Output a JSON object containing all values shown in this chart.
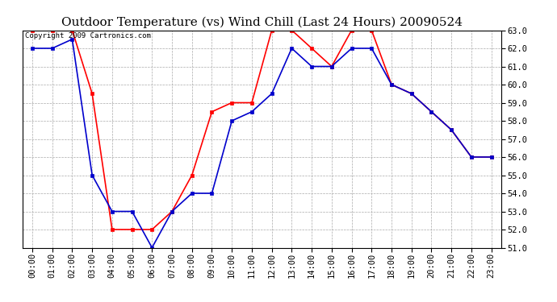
{
  "title": "Outdoor Temperature (vs) Wind Chill (Last 24 Hours) 20090524",
  "copyright_text": "Copyright 2009 Cartronics.com",
  "x_labels": [
    "00:00",
    "01:00",
    "02:00",
    "03:00",
    "04:00",
    "05:00",
    "06:00",
    "07:00",
    "08:00",
    "09:00",
    "10:00",
    "11:00",
    "12:00",
    "13:00",
    "14:00",
    "15:00",
    "16:00",
    "17:00",
    "18:00",
    "19:00",
    "20:00",
    "21:00",
    "22:00",
    "23:00"
  ],
  "ylim": [
    51.0,
    63.0
  ],
  "yticks": [
    51.0,
    52.0,
    53.0,
    54.0,
    55.0,
    56.0,
    57.0,
    58.0,
    59.0,
    60.0,
    61.0,
    62.0,
    63.0
  ],
  "temp_color": "#ff0000",
  "windchill_color": "#0000cc",
  "background_color": "#ffffff",
  "grid_color": "#aaaaaa",
  "outdoor_temp": [
    63.0,
    63.0,
    63.0,
    59.5,
    52.0,
    52.0,
    52.0,
    53.0,
    55.0,
    58.5,
    59.0,
    59.0,
    63.0,
    63.0,
    62.0,
    61.0,
    63.0,
    63.0,
    60.0,
    59.5,
    58.5,
    57.5,
    56.0,
    56.0
  ],
  "wind_chill": [
    62.0,
    62.0,
    62.5,
    55.0,
    53.0,
    53.0,
    51.0,
    53.0,
    54.0,
    54.0,
    58.0,
    58.5,
    59.5,
    62.0,
    61.0,
    61.0,
    62.0,
    62.0,
    60.0,
    59.5,
    58.5,
    57.5,
    56.0,
    56.0
  ],
  "title_fontsize": 11,
  "tick_fontsize": 7.5,
  "copyright_fontsize": 6.5,
  "fig_width": 6.9,
  "fig_height": 3.75,
  "dpi": 100
}
